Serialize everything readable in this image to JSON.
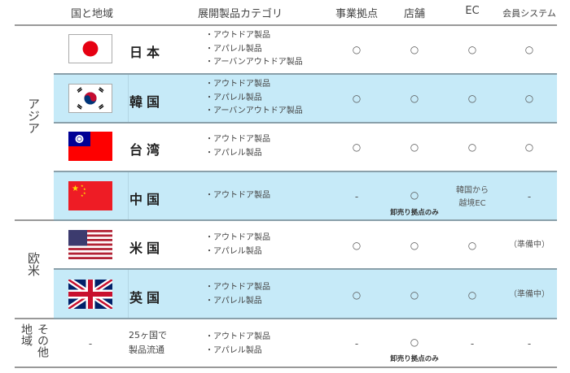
{
  "header": {
    "country": "国と地域",
    "category": "展開製品カテゴリ",
    "office": "事業拠点",
    "store": "店舗",
    "ec": "EC",
    "member": "会員システム"
  },
  "regions": [
    {
      "label": "アジア"
    },
    {
      "label": "欧米"
    },
    {
      "label": "その他地域",
      "col1": "その",
      "col2": "地域",
      "col3": "他"
    }
  ],
  "rows": [
    {
      "name": "日本",
      "flag": "japan",
      "cats": [
        "・アウトドア製品",
        "・アパレル製品",
        "・アーバンアウトドア製品"
      ],
      "office": "○",
      "store": "○",
      "ec": "○",
      "member": "○"
    },
    {
      "name": "韓国",
      "flag": "korea",
      "cats": [
        "・アウトドア製品",
        "・アパレル製品",
        "・アーバンアウトドア製品"
      ],
      "office": "○",
      "store": "○",
      "ec": "○",
      "member": "○"
    },
    {
      "name": "台湾",
      "flag": "taiwan",
      "cats": [
        "・アウトドア製品",
        "・アパレル製品"
      ],
      "office": "○",
      "store": "○",
      "ec": "○",
      "member": "○"
    },
    {
      "name": "中国",
      "flag": "china",
      "cats": [
        "・アウトドア製品"
      ],
      "office": "-",
      "store": "○",
      "store_note": "卸売り拠点のみ",
      "ec_line1": "韓国から",
      "ec_line2": "越境EC",
      "member": "-"
    },
    {
      "name": "米国",
      "flag": "usa",
      "cats": [
        "・アウトドア製品",
        "・アパレル製品"
      ],
      "office": "○",
      "store": "○",
      "ec": "○",
      "member": "（準備中）"
    },
    {
      "name": "英国",
      "flag": "uk",
      "cats": [
        "・アウトドア製品",
        "・アパレル製品"
      ],
      "office": "○",
      "store": "○",
      "ec": "○",
      "member": "（準備中）"
    },
    {
      "flag_text": "-",
      "name_line1": "25ヶ国で",
      "name_line2": "製品流通",
      "cats": [
        "・アウトドア製品",
        "・アパレル製品"
      ],
      "office": "-",
      "store": "○",
      "store_note": "卸売り拠点のみ",
      "ec": "-",
      "member": "-"
    }
  ],
  "colors": {
    "row_highlight": "#c6eaf8"
  }
}
